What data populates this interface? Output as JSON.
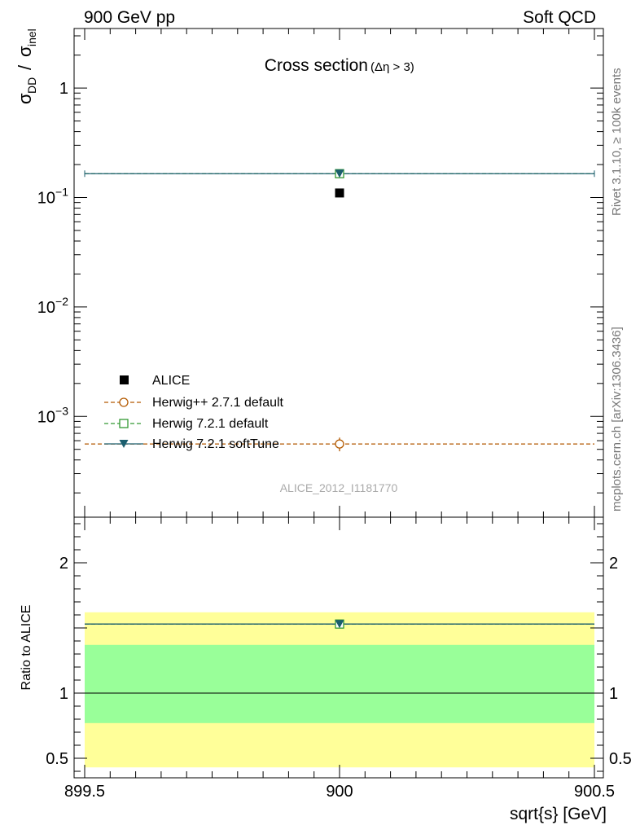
{
  "header": {
    "left": "900 GeV pp",
    "right": "Soft QCD"
  },
  "side_text": {
    "rivet": "Rivet 3.1.10, ≥ 100k events",
    "mcplots": "mcplots.cern.ch [arXiv:1306.3436]"
  },
  "colors": {
    "alice": "#000000",
    "herwigpp": "#b35900",
    "herwig721": "#339933",
    "softtune": "#1b5e6e",
    "band_inner": "#99ff99",
    "band_outer": "#ffff99"
  },
  "chart_data": [
    {
      "type": "scatter",
      "title": "Cross section",
      "title_sub": "(Δη > 3)",
      "ylabel_main": "σ",
      "ylabel_sub": "DD",
      "ylabel_den": "σ",
      "ylabel_den_sub": "inel",
      "yscale": "log",
      "ylim": [
        0.00012,
        3.5
      ],
      "xlim": [
        899.5,
        900.5
      ],
      "y_ticks": [
        {
          "value": 0.001,
          "base": "10",
          "exp": "−3"
        },
        {
          "value": 0.01,
          "base": "10",
          "exp": "−2"
        },
        {
          "value": 0.1,
          "base": "10",
          "exp": "−1"
        },
        {
          "value": 1,
          "base": "1",
          "exp": ""
        }
      ],
      "watermark": "ALICE_2012_I1181770",
      "legend_position": "lower-left",
      "series": [
        {
          "name": "ALICE",
          "marker": "filled-square",
          "x": [
            900
          ],
          "y": [
            0.11
          ],
          "color": "#000000"
        },
        {
          "name": "Herwig++ 2.7.1 default",
          "marker": "open-circle",
          "x": [
            900
          ],
          "y": [
            0.00056
          ],
          "yerr": [
            8e-05
          ],
          "line": "dashed",
          "color": "#b35900"
        },
        {
          "name": "Herwig 7.2.1 default",
          "marker": "open-square",
          "x": [
            900
          ],
          "y": [
            0.165
          ],
          "line": "dashed",
          "color": "#339933"
        },
        {
          "name": "Herwig 7.2.1 softTune",
          "marker": "filled-triangle-down",
          "x": [
            900
          ],
          "y": [
            0.165
          ],
          "line": "solid",
          "color": "#1b5e6e"
        }
      ]
    },
    {
      "type": "scatter",
      "ylabel": "Ratio to ALICE",
      "xlabel": "sqrt{s} [GeV]",
      "ylim": [
        0.35,
        2.35
      ],
      "xlim": [
        899.5,
        900.5
      ],
      "x_ticks": [
        "899.5",
        "900",
        "900.5"
      ],
      "y_ticks": [
        "0.5",
        "1",
        "2"
      ],
      "reference": 1,
      "band_inner": [
        0.77,
        1.37
      ],
      "band_outer": [
        0.43,
        1.62
      ],
      "series": [
        {
          "name": "Herwig 7.2.1 default",
          "x": [
            900
          ],
          "y": [
            1.53
          ]
        },
        {
          "name": "Herwig 7.2.1 softTune",
          "x": [
            900
          ],
          "y": [
            1.53
          ]
        }
      ]
    }
  ]
}
